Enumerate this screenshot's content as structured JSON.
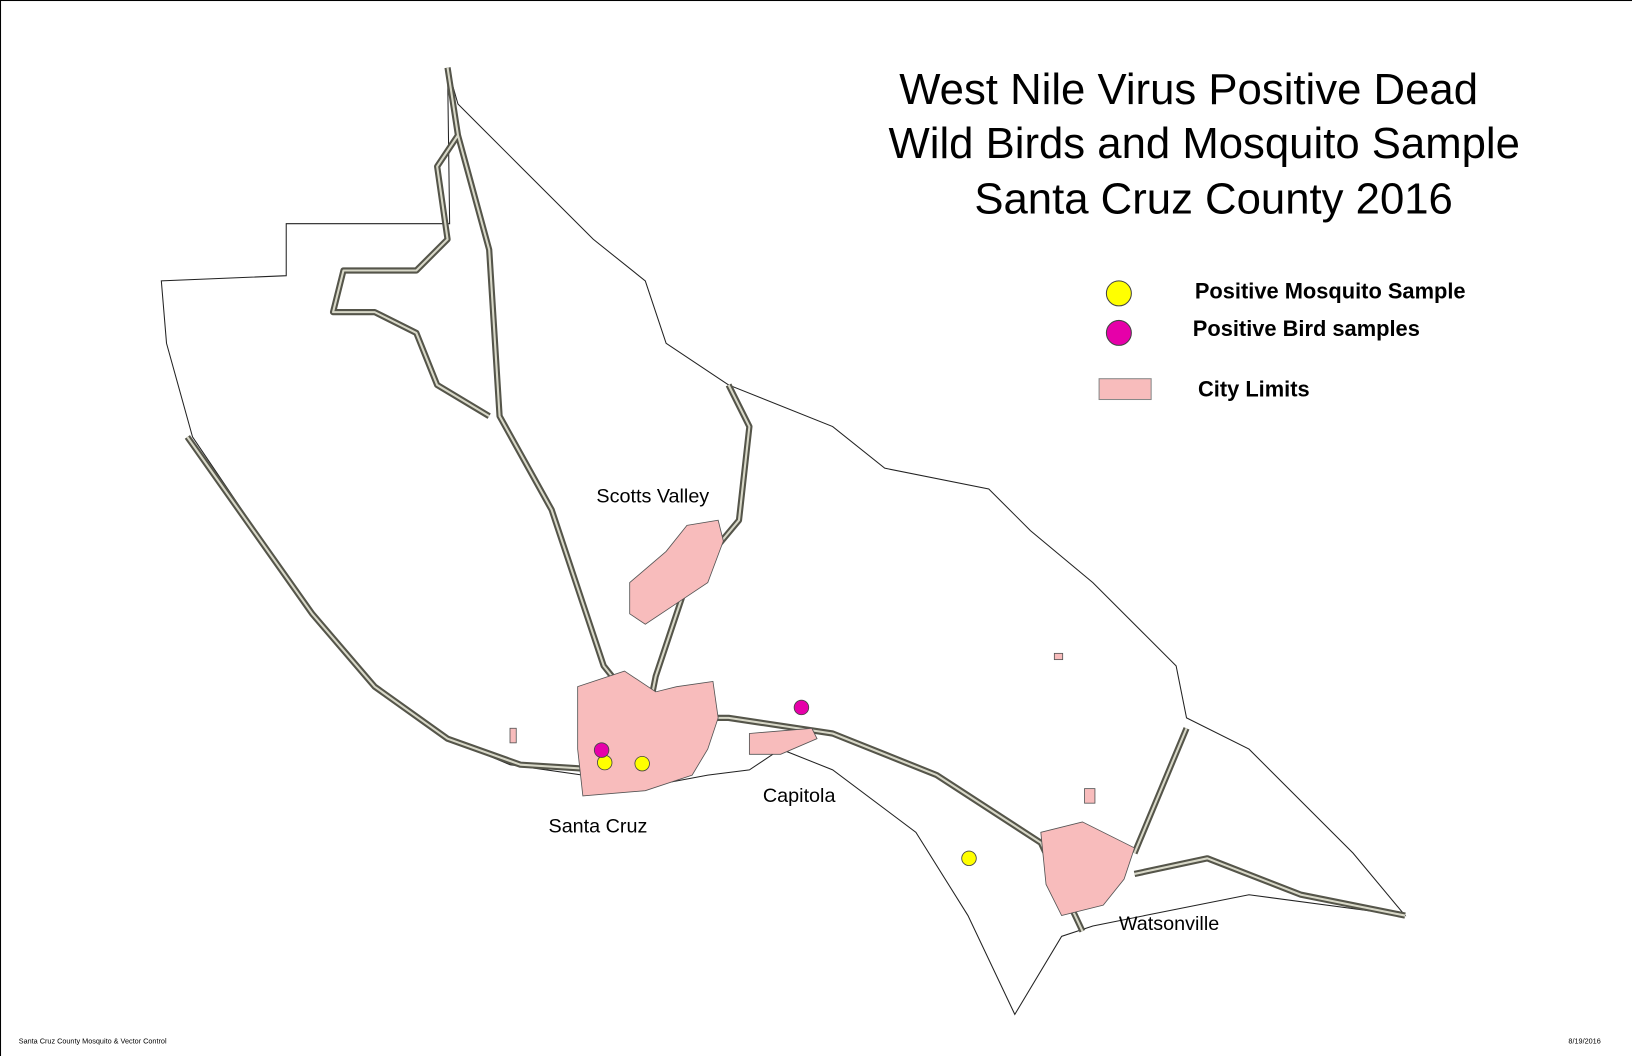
{
  "title": [
    "West Nile Virus Positive Dead",
    "Wild Birds and Mosquito Sample",
    "Santa Cruz County 2016"
  ],
  "legend": [
    "Positive Mosquito Sample",
    "Positive Bird samples",
    "City Limits"
  ],
  "places": [
    "Scotts Valley",
    "Santa Cruz",
    "Capitola",
    "Watsonville"
  ],
  "footer": {
    "left": "Santa Cruz County Mosquito & Vector Control",
    "right": "8/19/2016"
  }
}
